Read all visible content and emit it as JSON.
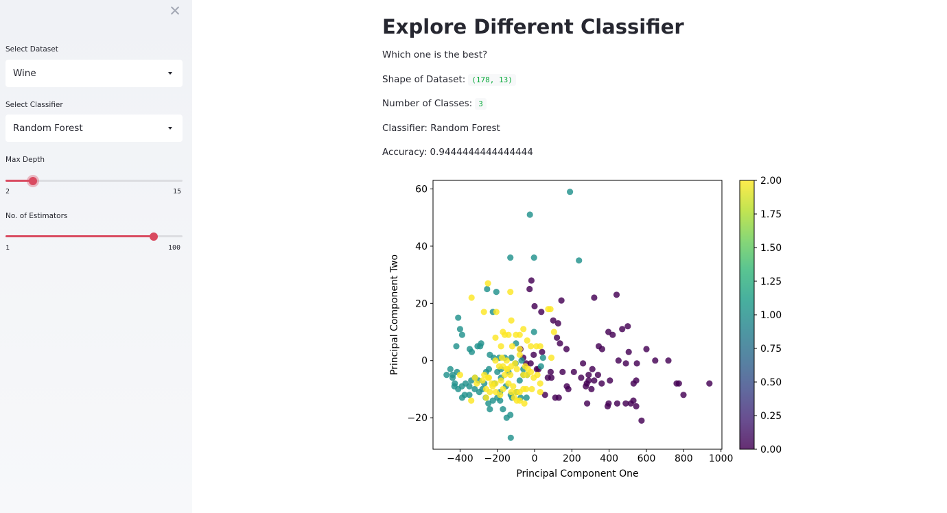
{
  "sidebar": {
    "close_icon": "close-icon",
    "dataset": {
      "label": "Select Dataset",
      "value": "Wine"
    },
    "classifier": {
      "label": "Select Classifier",
      "value": "Random Forest"
    },
    "max_depth": {
      "label": "Max Depth",
      "min": "2",
      "max": "15",
      "value": 4
    },
    "estimators": {
      "label": "No. of Estimators",
      "min": "1",
      "max": "100",
      "value": 84
    },
    "accent_color": "#d94a60"
  },
  "main": {
    "title": "Explore Different Classifier",
    "subtitle": "Which one is the best?",
    "shape_label": "Shape of Dataset:",
    "shape_value": "(178, 13)",
    "classes_label": "Number of Classes:",
    "classes_value": "3",
    "classifier_line": "Classifier: Random Forest",
    "accuracy_line": "Accuracy: 0.9444444444444444"
  },
  "chart_data": {
    "type": "scatter",
    "title": "",
    "xlabel": "Principal Component One",
    "ylabel": "Principal Component Two",
    "xlim": [
      -545,
      1005
    ],
    "ylim": [
      -31,
      63
    ],
    "xticks": [
      -400,
      -200,
      0,
      200,
      400,
      600,
      800,
      1000
    ],
    "yticks": [
      -20,
      0,
      20,
      40,
      60
    ],
    "xtick_labels": [
      "−400",
      "−200",
      "0",
      "200",
      "400",
      "600",
      "800",
      "1000"
    ],
    "ytick_labels": [
      "−20",
      "0",
      "20",
      "40",
      "60"
    ],
    "colorbar": {
      "colormap": "viridis",
      "range": [
        0,
        2
      ],
      "ticks": [
        0,
        0.25,
        0.5,
        0.75,
        1.0,
        1.25,
        1.5,
        1.75,
        2.0
      ],
      "tick_labels": [
        "0.00",
        "0.25",
        "0.50",
        "0.75",
        "1.00",
        "1.25",
        "1.50",
        "1.75",
        "2.00"
      ]
    },
    "series": [
      {
        "class_value": 0,
        "color": "#440154",
        "points": [
          [
            -17,
            28
          ],
          [
            -27,
            25
          ],
          [
            0,
            19
          ],
          [
            36,
            17
          ],
          [
            100,
            14
          ],
          [
            144,
            21
          ],
          [
            126,
            13
          ],
          [
            320,
            22
          ],
          [
            440,
            23
          ],
          [
            470,
            11
          ],
          [
            500,
            12
          ],
          [
            396,
            10
          ],
          [
            419,
            9
          ],
          [
            344,
            5
          ],
          [
            362,
            4
          ],
          [
            505,
            3
          ],
          [
            600,
            4
          ],
          [
            647,
            0
          ],
          [
            718,
            0
          ],
          [
            450,
            0
          ],
          [
            490,
            -1
          ],
          [
            549,
            -1
          ],
          [
            -76,
            4
          ],
          [
            -61,
            1
          ],
          [
            -21,
            -1
          ],
          [
            -45,
            -1
          ],
          [
            21,
            -3
          ],
          [
            86,
            -4
          ],
          [
            150,
            -4
          ],
          [
            211,
            -4
          ],
          [
            260,
            -1
          ],
          [
            250,
            -6
          ],
          [
            280,
            -8
          ],
          [
            275,
            -9
          ],
          [
            290,
            -5
          ],
          [
            310,
            -3
          ],
          [
            340,
            -5
          ],
          [
            320,
            -7
          ],
          [
            290,
            -7
          ],
          [
            305,
            -10
          ],
          [
            360,
            -8
          ],
          [
            404,
            -7
          ],
          [
            545,
            -7
          ],
          [
            531,
            -8
          ],
          [
            762,
            -8
          ],
          [
            774,
            -8
          ],
          [
            799,
            -12
          ],
          [
            938,
            -8
          ],
          [
            574,
            -21
          ],
          [
            530,
            -14
          ],
          [
            516,
            -15
          ],
          [
            545,
            -16
          ],
          [
            489,
            -15
          ],
          [
            443,
            -15
          ],
          [
            397,
            -15
          ],
          [
            392,
            -16
          ],
          [
            282,
            -15
          ],
          [
            173,
            -9
          ],
          [
            181,
            -10
          ],
          [
            130,
            -13
          ],
          [
            111,
            -13
          ],
          [
            56,
            -12
          ],
          [
            71,
            -6
          ],
          [
            12,
            -3
          ],
          [
            171,
            4
          ],
          [
            136,
            6
          ],
          [
            120,
            8
          ],
          [
            90,
            -6
          ],
          [
            40,
            3
          ],
          [
            -5,
            2
          ]
        ]
      },
      {
        "class_value": 1,
        "color": "#21918c",
        "points": [
          [
            190,
            59
          ],
          [
            -25,
            51
          ],
          [
            -130,
            36
          ],
          [
            -3,
            36
          ],
          [
            238,
            35
          ],
          [
            -255,
            25
          ],
          [
            -205,
            24
          ],
          [
            -224,
            17
          ],
          [
            -410,
            15
          ],
          [
            -400,
            11
          ],
          [
            -389,
            9
          ],
          [
            -420,
            5
          ],
          [
            -337,
            3
          ],
          [
            -348,
            4
          ],
          [
            -306,
            5
          ],
          [
            -287,
            6
          ],
          [
            -292,
            5
          ],
          [
            -240,
            2
          ],
          [
            -220,
            1
          ],
          [
            -190,
            1
          ],
          [
            -160,
            1
          ],
          [
            -125,
            1
          ],
          [
            -102,
            -1
          ],
          [
            -140,
            -4
          ],
          [
            -180,
            -3
          ],
          [
            -200,
            -4
          ],
          [
            -260,
            -4
          ],
          [
            -270,
            -8
          ],
          [
            -300,
            -7
          ],
          [
            -320,
            -6
          ],
          [
            -340,
            -7
          ],
          [
            -350,
            -9
          ],
          [
            -370,
            -8
          ],
          [
            -390,
            -9
          ],
          [
            -410,
            -10
          ],
          [
            -430,
            -9
          ],
          [
            -452,
            -3
          ],
          [
            -439,
            -5
          ],
          [
            -416,
            -4
          ],
          [
            -472,
            -5
          ],
          [
            -428,
            -8
          ],
          [
            -389,
            -13
          ],
          [
            -375,
            -12
          ],
          [
            -350,
            -12
          ],
          [
            -321,
            -10
          ],
          [
            -297,
            -11
          ],
          [
            -280,
            -10
          ],
          [
            -262,
            -13
          ],
          [
            -248,
            -15
          ],
          [
            -224,
            -14
          ],
          [
            -200,
            -13
          ],
          [
            -185,
            -11
          ],
          [
            -154,
            -9
          ],
          [
            -121,
            -13
          ],
          [
            -97,
            -11
          ],
          [
            -75,
            -13
          ],
          [
            -43,
            -13
          ],
          [
            -60,
            -3
          ],
          [
            -40,
            -5
          ],
          [
            -3,
            10
          ],
          [
            34,
            -2
          ],
          [
            45,
            1
          ],
          [
            -80,
            -7
          ],
          [
            -128,
            -12
          ],
          [
            -185,
            -14
          ],
          [
            -170,
            -17
          ],
          [
            -240,
            -17
          ],
          [
            -130,
            -19
          ],
          [
            -150,
            -20
          ],
          [
            -128,
            -27
          ],
          [
            -180,
            -6
          ],
          [
            -215,
            -8
          ],
          [
            -245,
            -3
          ],
          [
            -70,
            0
          ],
          [
            -100,
            6
          ],
          [
            -60,
            -5
          ],
          [
            -440,
            -6
          ]
        ]
      },
      {
        "class_value": 2,
        "color": "#fde725",
        "points": [
          [
            -250,
            27
          ],
          [
            -338,
            22
          ],
          [
            -130,
            24
          ],
          [
            -272,
            17
          ],
          [
            -205,
            17
          ],
          [
            -125,
            14
          ],
          [
            -60,
            11
          ],
          [
            73,
            18
          ],
          [
            85,
            18
          ],
          [
            104,
            10
          ],
          [
            -80,
            9
          ],
          [
            -100,
            9
          ],
          [
            -140,
            9
          ],
          [
            -160,
            9
          ],
          [
            -170,
            10
          ],
          [
            -210,
            8
          ],
          [
            -40,
            7
          ],
          [
            -20,
            5
          ],
          [
            10,
            5
          ],
          [
            30,
            5
          ],
          [
            -180,
            5
          ],
          [
            -80,
            4
          ],
          [
            -175,
            1
          ],
          [
            -190,
            -2
          ],
          [
            -170,
            -2
          ],
          [
            -145,
            -3
          ],
          [
            -125,
            -2
          ],
          [
            -95,
            -3
          ],
          [
            -60,
            -5
          ],
          [
            -40,
            -5
          ],
          [
            -20,
            -4
          ],
          [
            15,
            -5
          ],
          [
            -130,
            -5
          ],
          [
            -160,
            -5
          ],
          [
            -180,
            -7
          ],
          [
            -210,
            -8
          ],
          [
            -230,
            -8
          ],
          [
            -250,
            -6
          ],
          [
            -270,
            -5
          ],
          [
            -280,
            -7
          ],
          [
            -260,
            -10
          ],
          [
            -240,
            -11
          ],
          [
            -208,
            -11
          ],
          [
            -170,
            -10
          ],
          [
            -140,
            -8
          ],
          [
            -115,
            -9
          ],
          [
            -100,
            -11
          ],
          [
            -80,
            -11
          ],
          [
            -60,
            -10
          ],
          [
            -45,
            -10
          ],
          [
            -15,
            -10
          ],
          [
            30,
            -11
          ],
          [
            -55,
            -15
          ],
          [
            -80,
            -14
          ],
          [
            -110,
            -13
          ],
          [
            -125,
            -11
          ],
          [
            -340,
            -14
          ],
          [
            -260,
            -13
          ],
          [
            -310,
            -8
          ],
          [
            -320,
            -6
          ],
          [
            -400,
            -5
          ],
          [
            -210,
            0
          ],
          [
            -150,
            0
          ],
          [
            -105,
            -1
          ],
          [
            -50,
            -2
          ],
          [
            -5,
            -6
          ],
          [
            -245,
            -6
          ],
          [
            -225,
            -9
          ],
          [
            -120,
            5
          ],
          [
            -80,
            2
          ],
          [
            30,
            -8
          ],
          [
            -150,
            -3
          ],
          [
            -95,
            -14
          ],
          [
            -185,
            -12
          ],
          [
            90,
            1
          ],
          [
            -35,
            -3
          ]
        ]
      }
    ]
  }
}
